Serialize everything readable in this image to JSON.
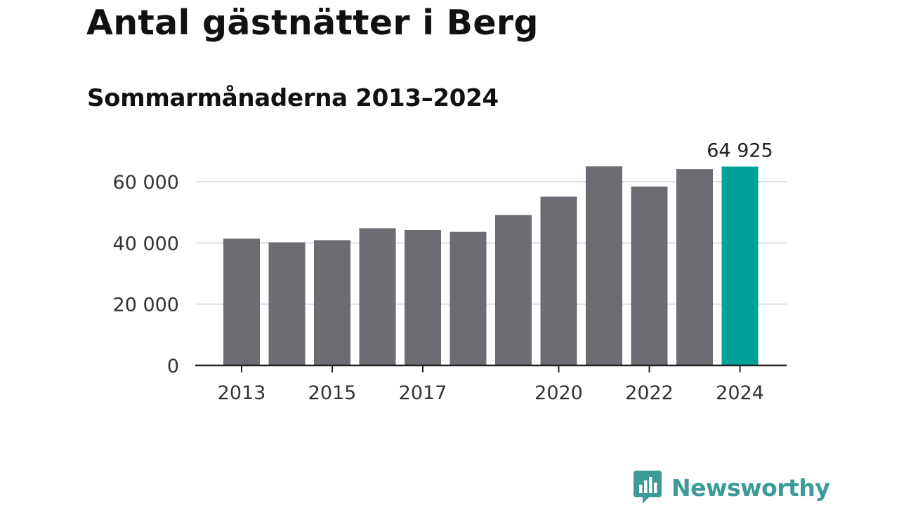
{
  "title": "Antal gästnätter i Berg",
  "subtitle": "Sommarmånaderna 2013–2024",
  "brand": {
    "name": "Newsworthy",
    "color": "#3a9b97"
  },
  "colors": {
    "bar": "#6d6c73",
    "highlight": "#00a196",
    "grid": "#dddddd",
    "axis": "#222222",
    "text": "#333333"
  },
  "chart_data": {
    "type": "bar",
    "categories": [
      "2013",
      "2014",
      "2015",
      "2016",
      "2017",
      "2018",
      "2019",
      "2020",
      "2021",
      "2022",
      "2023",
      "2024"
    ],
    "values": [
      41400,
      40200,
      40900,
      44800,
      44200,
      43600,
      49100,
      55100,
      65000,
      58400,
      64100,
      64925
    ],
    "highlight_index": 11,
    "data_labels": [
      {
        "index": 11,
        "text": "64 925"
      }
    ],
    "y_ticks": [
      {
        "value": 0,
        "label": "0"
      },
      {
        "value": 20000,
        "label": "20 000"
      },
      {
        "value": 40000,
        "label": "40 000"
      },
      {
        "value": 60000,
        "label": "60 000"
      }
    ],
    "x_tick_labels": [
      "2013",
      "2015",
      "2017",
      "2020",
      "2022",
      "2024"
    ],
    "ylim": [
      0,
      65000
    ],
    "xlabel": "",
    "ylabel": "",
    "grid": true
  }
}
